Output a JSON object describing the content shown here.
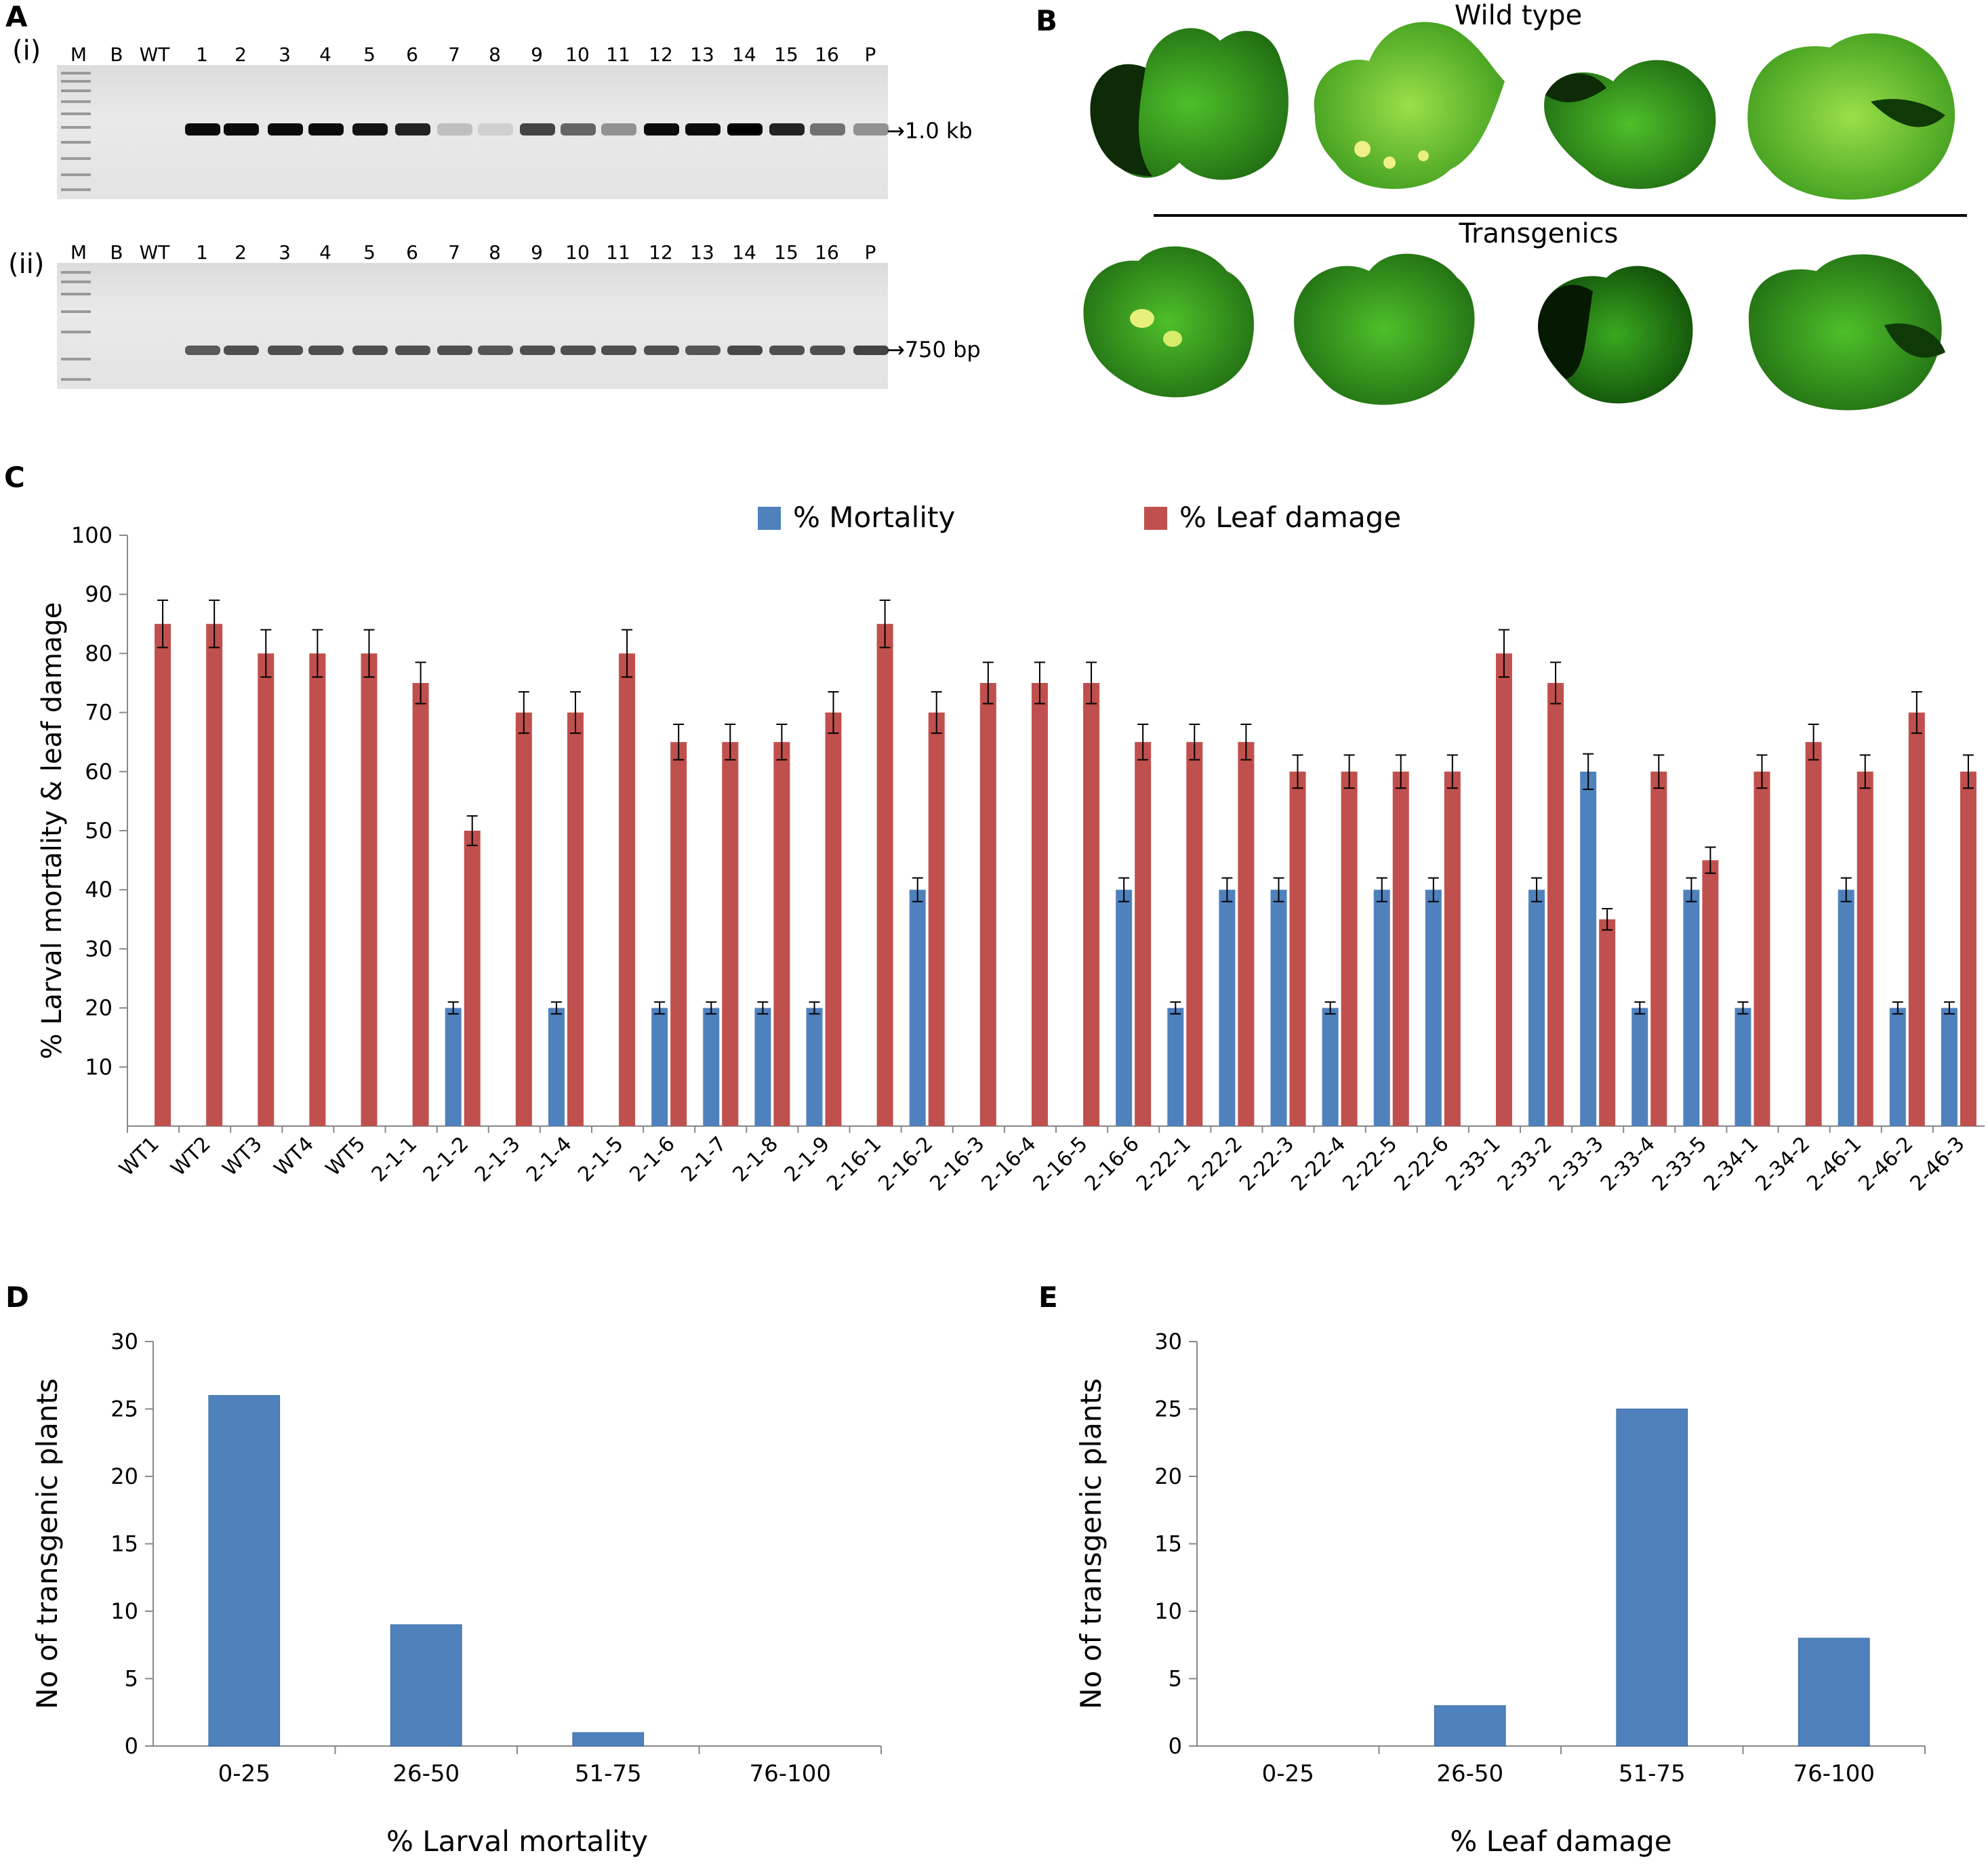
{
  "panels": {
    "a": {
      "letter": "A",
      "sub_i": "(i)",
      "sub_ii": "(ii)"
    },
    "b": {
      "letter": "B",
      "wild_type": "Wild type",
      "transgenics": "Transgenics"
    },
    "c": {
      "letter": "C"
    },
    "d": {
      "letter": "D"
    },
    "e": {
      "letter": "E"
    }
  },
  "gel_i": {
    "lanes": [
      "M",
      "B",
      "WT",
      "1",
      "2",
      "3",
      "4",
      "5",
      "6",
      "7",
      "8",
      "9",
      "10",
      "11",
      "12",
      "13",
      "14",
      "15",
      "16",
      "P"
    ],
    "marker": "1.0 kb",
    "band_intensity": [
      0,
      0,
      0,
      0.95,
      0.95,
      0.95,
      0.95,
      0.92,
      0.85,
      0.15,
      0.08,
      0.7,
      0.55,
      0.35,
      0.95,
      0.95,
      1.0,
      0.85,
      0.5,
      0.35
    ]
  },
  "gel_ii": {
    "lanes": [
      "M",
      "B",
      "WT",
      "1",
      "2",
      "3",
      "4",
      "5",
      "6",
      "7",
      "8",
      "9",
      "10",
      "11",
      "12",
      "13",
      "14",
      "15",
      "16",
      "P"
    ],
    "marker": "750 bp",
    "band_intensity": [
      0,
      0,
      0,
      0.6,
      0.65,
      0.65,
      0.65,
      0.65,
      0.65,
      0.65,
      0.62,
      0.65,
      0.65,
      0.65,
      0.65,
      0.62,
      0.68,
      0.65,
      0.65,
      0.7
    ]
  },
  "chart_data": [
    {
      "type": "bar",
      "title": "",
      "xlabel": "",
      "ylabel": "% Larval mortality & leaf damage",
      "ylim": [
        0,
        100
      ],
      "yticks": [
        "10",
        "20",
        "30",
        "40",
        "50",
        "60",
        "70",
        "80",
        "90",
        "100"
      ],
      "grid": false,
      "legend_position": "top",
      "categories": [
        "WT1",
        "WT2",
        "WT3",
        "WT4",
        "WT5",
        "2-1-1",
        "2-1-2",
        "2-1-3",
        "2-1-4",
        "2-1-5",
        "2-1-6",
        "2-1-7",
        "2-1-8",
        "2-1-9",
        "2-16-1",
        "2-16-2",
        "2-16-3",
        "2-16-4",
        "2-16-5",
        "2-16-6",
        "2-22-1",
        "2-22-2",
        "2-22-3",
        "2-22-4",
        "2-22-5",
        "2-22-6",
        "2-33-1",
        "2-33-2",
        "2-33-3",
        "2-33-4",
        "2-33-5",
        "2-34-1",
        "2-34-2",
        "2-46-1",
        "2-46-2",
        "2-46-3"
      ],
      "series": [
        {
          "name": "% Mortality",
          "color": "#4f81bd",
          "values": [
            0,
            0,
            0,
            0,
            0,
            0,
            20,
            0,
            20,
            0,
            20,
            20,
            20,
            20,
            0,
            40,
            0,
            0,
            0,
            40,
            20,
            40,
            40,
            20,
            40,
            40,
            0,
            40,
            60,
            20,
            40,
            20,
            0,
            40,
            20,
            20
          ],
          "errors": [
            0,
            0,
            0,
            0,
            0,
            0,
            1,
            0,
            1,
            0,
            1,
            1,
            1,
            1,
            0,
            2,
            0,
            0,
            0,
            2,
            1,
            2,
            2,
            1,
            2,
            2,
            0,
            2,
            3,
            1,
            2,
            1,
            0,
            2,
            1,
            1
          ]
        },
        {
          "name": "% Leaf damage",
          "color": "#c0504d",
          "values": [
            85,
            85,
            80,
            80,
            80,
            75,
            50,
            70,
            70,
            80,
            65,
            65,
            65,
            70,
            85,
            70,
            75,
            75,
            75,
            65,
            65,
            65,
            60,
            60,
            60,
            60,
            80,
            75,
            35,
            60,
            45,
            60,
            65,
            60,
            70,
            60
          ],
          "errors": [
            4,
            4,
            4,
            4,
            4,
            3.5,
            2.5,
            3.5,
            3.5,
            4,
            3,
            3,
            3,
            3.5,
            4,
            3.5,
            3.5,
            3.5,
            3.5,
            3,
            3,
            3,
            2.8,
            2.8,
            2.8,
            2.8,
            4,
            3.5,
            1.8,
            2.8,
            2.2,
            2.8,
            3,
            2.8,
            3.5,
            2.8
          ]
        }
      ]
    },
    {
      "type": "bar",
      "title": "",
      "xlabel": "% Larval mortality",
      "ylabel": "No of transgenic plants",
      "ylim": [
        0,
        30
      ],
      "yticks": [
        "0",
        "5",
        "10",
        "15",
        "20",
        "25",
        "30"
      ],
      "grid": false,
      "categories": [
        "0-25",
        "26-50",
        "51-75",
        "76-100"
      ],
      "values": [
        26,
        9,
        1,
        0
      ],
      "color": "#4f81bd"
    },
    {
      "type": "bar",
      "title": "",
      "xlabel": "% Leaf damage",
      "ylabel": "No of transgenic plants",
      "ylim": [
        0,
        30
      ],
      "yticks": [
        "0",
        "5",
        "10",
        "15",
        "20",
        "25",
        "30"
      ],
      "grid": false,
      "categories": [
        "0-25",
        "26-50",
        "51-75",
        "76-100"
      ],
      "values": [
        0,
        3,
        25,
        8
      ],
      "color": "#4f81bd"
    }
  ]
}
